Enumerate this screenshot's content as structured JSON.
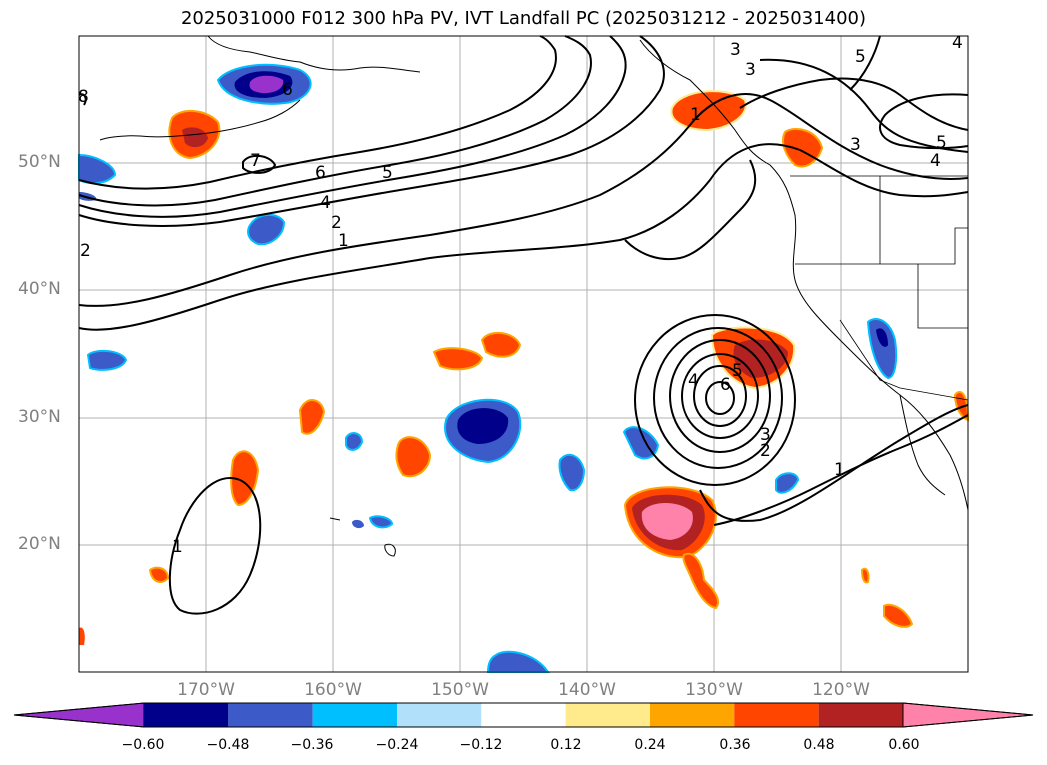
{
  "title": "2025031000 F012 300 hPa PV, IVT Landfall PC (2025031212 - 2025031400)",
  "axes": {
    "lat_labels": [
      "50°N",
      "40°N",
      "30°N",
      "20°N"
    ],
    "lon_labels": [
      "170°W",
      "160°W",
      "150°W",
      "140°W",
      "130°W",
      "120°W"
    ]
  },
  "colorbar": {
    "colors": [
      "#9932cc",
      "#00008b",
      "#3c5ac8",
      "#00bfff",
      "#b0e0fa",
      "#ffffff",
      "#ffea8c",
      "#ffa500",
      "#ff4500",
      "#b22222",
      "#ff82aa"
    ],
    "tick_labels": [
      "−0.60",
      "−0.48",
      "−0.36",
      "−0.24",
      "−0.12",
      "0.12",
      "0.24",
      "0.36",
      "0.48",
      "0.60"
    ]
  },
  "contour_labels": [
    "1",
    "2",
    "3",
    "4",
    "5",
    "6",
    "7",
    "8",
    "1",
    "2",
    "3",
    "4",
    "5",
    "6",
    "1",
    "2",
    "3",
    "4",
    "5",
    "1",
    "3",
    "5",
    "6",
    "4",
    "2",
    "1",
    "3",
    "4"
  ],
  "colors": {
    "grid": "#b0b0b0",
    "contour": "#000000",
    "axis_text": "#808080"
  }
}
